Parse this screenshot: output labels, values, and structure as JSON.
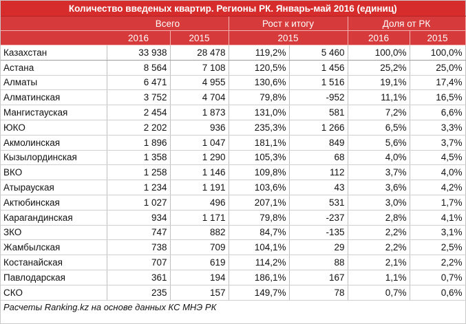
{
  "title": "Количество введеных квартир. Регионы РК. Январь-май 2016 (единиц)",
  "groups": {
    "total": "Всего",
    "growth": "Рост к итогу",
    "share": "Доля от РК"
  },
  "subheaders": {
    "total_2016": "2016",
    "total_2015": "2015",
    "growth_2015": "2015",
    "share_2016": "2016",
    "share_2015": "2015"
  },
  "rows": [
    {
      "region": "Казахстан",
      "total_2016": "33 938",
      "total_2015": "28 478",
      "growth_pct": "119,2%",
      "growth_abs": "5 460",
      "share_2016": "100,0%",
      "share_2015": "100,0%"
    },
    {
      "region": "Астана",
      "total_2016": "8 564",
      "total_2015": "7 108",
      "growth_pct": "120,5%",
      "growth_abs": "1 456",
      "share_2016": "25,2%",
      "share_2015": "25,0%"
    },
    {
      "region": "Алматы",
      "total_2016": "6 471",
      "total_2015": "4 955",
      "growth_pct": "130,6%",
      "growth_abs": "1 516",
      "share_2016": "19,1%",
      "share_2015": "17,4%"
    },
    {
      "region": "Алматинская",
      "total_2016": "3 752",
      "total_2015": "4 704",
      "growth_pct": "79,8%",
      "growth_abs": "-952",
      "share_2016": "11,1%",
      "share_2015": "16,5%"
    },
    {
      "region": "Мангистауская",
      "total_2016": "2 454",
      "total_2015": "1 873",
      "growth_pct": "131,0%",
      "growth_abs": "581",
      "share_2016": "7,2%",
      "share_2015": "6,6%"
    },
    {
      "region": "ЮКО",
      "total_2016": "2 202",
      "total_2015": "936",
      "growth_pct": "235,3%",
      "growth_abs": "1 266",
      "share_2016": "6,5%",
      "share_2015": "3,3%"
    },
    {
      "region": "Акмолинская",
      "total_2016": "1 896",
      "total_2015": "1 047",
      "growth_pct": "181,1%",
      "growth_abs": "849",
      "share_2016": "5,6%",
      "share_2015": "3,7%"
    },
    {
      "region": "Кызылординская",
      "total_2016": "1 358",
      "total_2015": "1 290",
      "growth_pct": "105,3%",
      "growth_abs": "68",
      "share_2016": "4,0%",
      "share_2015": "4,5%"
    },
    {
      "region": "ВКО",
      "total_2016": "1 258",
      "total_2015": "1 146",
      "growth_pct": "109,8%",
      "growth_abs": "112",
      "share_2016": "3,7%",
      "share_2015": "4,0%"
    },
    {
      "region": "Атырауская",
      "total_2016": "1 234",
      "total_2015": "1 191",
      "growth_pct": "103,6%",
      "growth_abs": "43",
      "share_2016": "3,6%",
      "share_2015": "4,2%"
    },
    {
      "region": "Актюбинская",
      "total_2016": "1 027",
      "total_2015": "496",
      "growth_pct": "207,1%",
      "growth_abs": "531",
      "share_2016": "3,0%",
      "share_2015": "1,7%"
    },
    {
      "region": "Карагандинская",
      "total_2016": "934",
      "total_2015": "1 171",
      "growth_pct": "79,8%",
      "growth_abs": "-237",
      "share_2016": "2,8%",
      "share_2015": "4,1%"
    },
    {
      "region": "ЗКО",
      "total_2016": "747",
      "total_2015": "882",
      "growth_pct": "84,7%",
      "growth_abs": "-135",
      "share_2016": "2,2%",
      "share_2015": "3,1%"
    },
    {
      "region": "Жамбылская",
      "total_2016": "738",
      "total_2015": "709",
      "growth_pct": "104,1%",
      "growth_abs": "29",
      "share_2016": "2,2%",
      "share_2015": "2,5%"
    },
    {
      "region": "Костанайская",
      "total_2016": "707",
      "total_2015": "619",
      "growth_pct": "114,2%",
      "growth_abs": "88",
      "share_2016": "2,1%",
      "share_2015": "2,2%"
    },
    {
      "region": "Павлодарская",
      "total_2016": "361",
      "total_2015": "194",
      "growth_pct": "186,1%",
      "growth_abs": "167",
      "share_2016": "1,1%",
      "share_2015": "0,7%"
    },
    {
      "region": "СКО",
      "total_2016": "235",
      "total_2015": "157",
      "growth_pct": "149,7%",
      "growth_abs": "78",
      "share_2016": "0,7%",
      "share_2015": "0,6%"
    }
  ],
  "footer": "Расчеты Ranking.kz на основе данных КС МНЭ РК",
  "colors": {
    "title_bg": "#d62c2c",
    "header_bg": "#d73a3a",
    "header_text": "#ffffff"
  }
}
